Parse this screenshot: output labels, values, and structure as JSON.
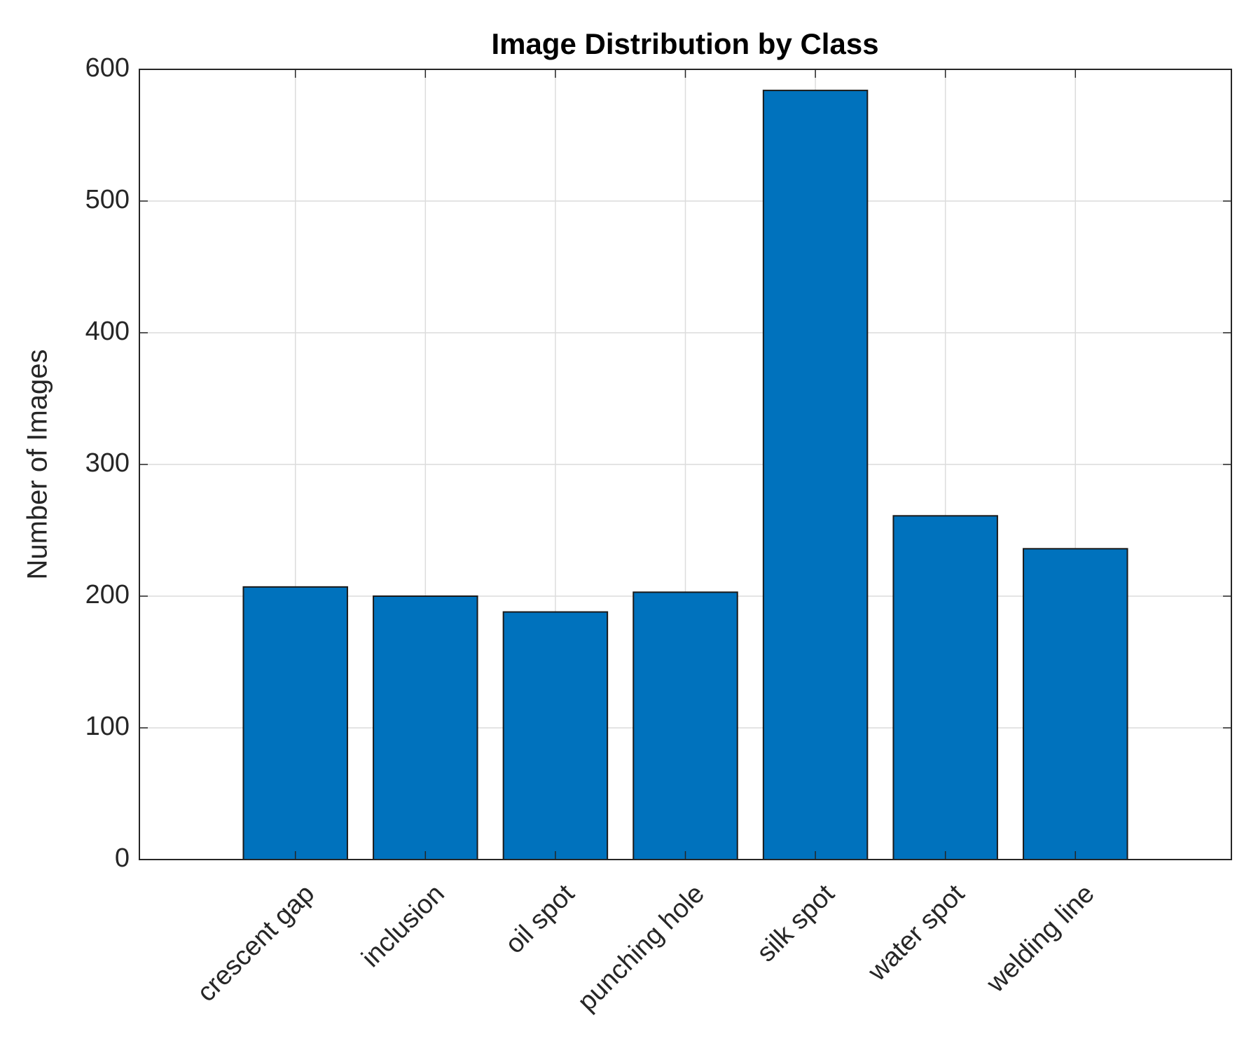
{
  "chart_data": {
    "type": "bar",
    "title": "Image Distribution by Class",
    "y_label": "Number of Images",
    "categories": [
      "crescent gap",
      "inclusion",
      "oil spot",
      "punching hole",
      "silk spot",
      "water spot",
      "welding line"
    ],
    "values": [
      207,
      200,
      188,
      203,
      584,
      261,
      236
    ],
    "color": "#0072bd",
    "ylim": [
      0,
      600
    ],
    "yticks": [
      0,
      100,
      200,
      300,
      400,
      500,
      600
    ],
    "grid": true
  }
}
